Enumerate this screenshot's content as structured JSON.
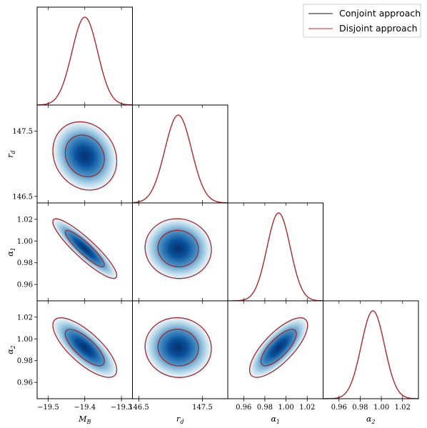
{
  "legend": {
    "entries": [
      {
        "label": "Conjoint approach",
        "color": "#1a1a1a"
      },
      {
        "label": "Disjoint approach",
        "color": "#d62728"
      }
    ]
  },
  "colors": {
    "conjoint": "#1a1a1a",
    "disjoint": "#d62728",
    "density_core": "#08306b",
    "density_edge": "#deebf7"
  },
  "chart_data": {
    "type": "corner",
    "parameters": [
      {
        "id": "M_B",
        "label_main": "M",
        "label_sub": "B",
        "mean": -19.4,
        "sigma": 0.035,
        "range": [
          -19.53,
          -19.27
        ],
        "ticks": [
          -19.5,
          -19.4,
          -19.3
        ],
        "tick_labels": [
          "−19.5",
          "−19.4",
          "−19.3"
        ]
      },
      {
        "id": "r_d",
        "label_main": "r",
        "label_sub": "d",
        "mean": 147.12,
        "sigma": 0.21,
        "range": [
          146.4,
          147.9
        ],
        "ticks": [
          146.5,
          147.5
        ],
        "tick_labels": [
          "146.5",
          "147.5"
        ]
      },
      {
        "id": "alpha_1",
        "label_main": "α",
        "label_sub": "1",
        "mean": 0.993,
        "sigma": 0.011,
        "range": [
          0.945,
          1.035
        ],
        "ticks": [
          0.96,
          0.98,
          1.0,
          1.02
        ],
        "tick_labels": [
          "0.96",
          "0.98",
          "1.00",
          "1.02"
        ]
      },
      {
        "id": "alpha_2",
        "label_main": "α",
        "label_sub": "2",
        "mean": 0.992,
        "sigma": 0.011,
        "range": [
          0.945,
          1.035
        ],
        "ticks": [
          0.96,
          0.98,
          1.0,
          1.02
        ],
        "tick_labels": [
          "0.96",
          "0.98",
          "1.00",
          "1.02"
        ]
      }
    ],
    "correlations": [
      {
        "pair": [
          "M_B",
          "r_d"
        ],
        "rho": -0.15
      },
      {
        "pair": [
          "M_B",
          "alpha_1"
        ],
        "rho": -0.9
      },
      {
        "pair": [
          "M_B",
          "alpha_2"
        ],
        "rho": -0.75
      },
      {
        "pair": [
          "r_d",
          "alpha_1"
        ],
        "rho": 0.0
      },
      {
        "pair": [
          "r_d",
          "alpha_2"
        ],
        "rho": 0.0
      },
      {
        "pair": [
          "alpha_1",
          "alpha_2"
        ],
        "rho": 0.75
      }
    ],
    "contour_levels_sigma": [
      1.52,
      2.49
    ],
    "series": [
      {
        "name": "Conjoint approach"
      },
      {
        "name": "Disjoint approach"
      }
    ],
    "legend_position": "top-right"
  }
}
